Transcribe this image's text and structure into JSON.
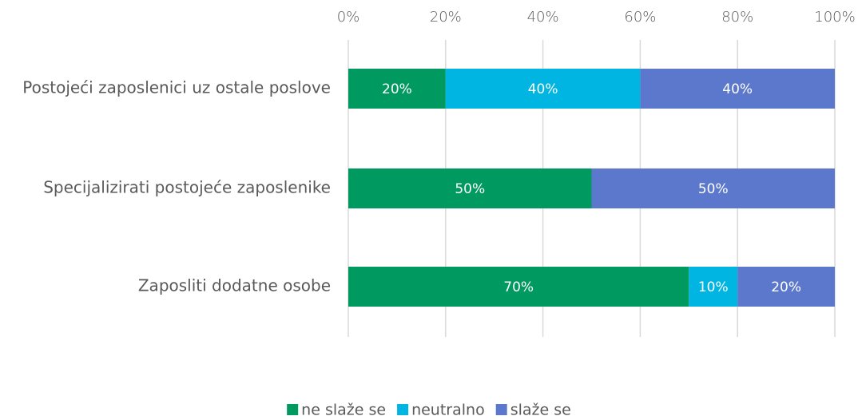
{
  "chart_data": {
    "type": "stacked_bar_horizontal",
    "categories": [
      "Postojeći zaposlenici uz ostale poslove",
      "Specijalizirati postojeće zaposlenike",
      "Zaposliti dodatne osobe"
    ],
    "series": [
      {
        "name": "ne slaže se",
        "color": "#00995f",
        "values": [
          20,
          50,
          70
        ],
        "value_labels": [
          "20%",
          "50%",
          "70%"
        ]
      },
      {
        "name": "neutralno",
        "color": "#00b5e2",
        "values": [
          40,
          null,
          10
        ],
        "value_labels": [
          "40%",
          null,
          "10%"
        ]
      },
      {
        "name": "slaže se",
        "color": "#5b78cc",
        "values": [
          40,
          50,
          20
        ],
        "value_labels": [
          "40%",
          "50%",
          "20%"
        ]
      }
    ],
    "xlim": [
      0,
      100
    ],
    "xticks": [
      {
        "value": 0,
        "label": "0%"
      },
      {
        "value": 20,
        "label": "20%"
      },
      {
        "value": 40,
        "label": "40%"
      },
      {
        "value": 60,
        "label": "60%"
      },
      {
        "value": 80,
        "label": "80%"
      },
      {
        "value": 100,
        "label": "100%"
      }
    ],
    "grid": true,
    "legend": "bottom"
  }
}
